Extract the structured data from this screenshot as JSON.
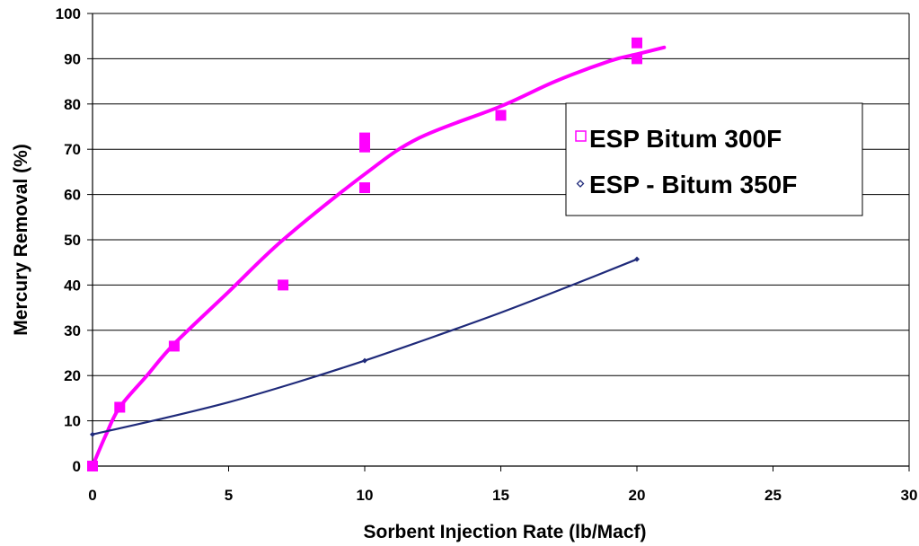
{
  "chart_data": {
    "type": "scatter",
    "title": "",
    "xlabel": "Sorbent Injection Rate (lb/Macf)",
    "ylabel": "Mercury Removal (%)",
    "xlim": [
      0,
      30
    ],
    "ylim": [
      0,
      100
    ],
    "x_ticks": [
      0,
      5,
      10,
      15,
      20,
      25,
      30
    ],
    "y_ticks": [
      0,
      10,
      20,
      30,
      40,
      50,
      60,
      70,
      80,
      90,
      100
    ],
    "grid": "horizontal",
    "legend_position": "right",
    "series": [
      {
        "name": "ESP Bitum 300F",
        "color": "#ff00ff",
        "marker": "square",
        "points": [
          {
            "x": 0,
            "y": 0
          },
          {
            "x": 1,
            "y": 13
          },
          {
            "x": 3,
            "y": 26.5
          },
          {
            "x": 7,
            "y": 40
          },
          {
            "x": 10,
            "y": 61.5
          },
          {
            "x": 10,
            "y": 70.5
          },
          {
            "x": 10,
            "y": 72.5
          },
          {
            "x": 15,
            "y": 77.5
          },
          {
            "x": 20,
            "y": 90
          },
          {
            "x": 20,
            "y": 93.5
          }
        ],
        "trendline": [
          {
            "x": 0,
            "y": 0
          },
          {
            "x": 0.5,
            "y": 7
          },
          {
            "x": 1,
            "y": 13
          },
          {
            "x": 2,
            "y": 20
          },
          {
            "x": 3,
            "y": 27
          },
          {
            "x": 5,
            "y": 38.5
          },
          {
            "x": 7,
            "y": 50
          },
          {
            "x": 10,
            "y": 64.5
          },
          {
            "x": 12,
            "y": 72.5
          },
          {
            "x": 15,
            "y": 79.5
          },
          {
            "x": 17,
            "y": 85
          },
          {
            "x": 19,
            "y": 89.5
          },
          {
            "x": 20,
            "y": 91
          },
          {
            "x": 21,
            "y": 92.5
          }
        ]
      },
      {
        "name": "ESP - Bitum 350F",
        "color": "#1f2a7a",
        "marker": "diamond",
        "points": [
          {
            "x": 0,
            "y": 7
          },
          {
            "x": 10,
            "y": 23.3
          },
          {
            "x": 20,
            "y": 45.7
          }
        ],
        "trendline": [
          {
            "x": 0,
            "y": 7
          },
          {
            "x": 2.5,
            "y": 10.4
          },
          {
            "x": 5,
            "y": 14.1
          },
          {
            "x": 7.5,
            "y": 18.5
          },
          {
            "x": 10,
            "y": 23.3
          },
          {
            "x": 12.5,
            "y": 28.5
          },
          {
            "x": 15,
            "y": 33.9
          },
          {
            "x": 17.5,
            "y": 39.7
          },
          {
            "x": 20,
            "y": 45.7
          }
        ]
      }
    ]
  }
}
